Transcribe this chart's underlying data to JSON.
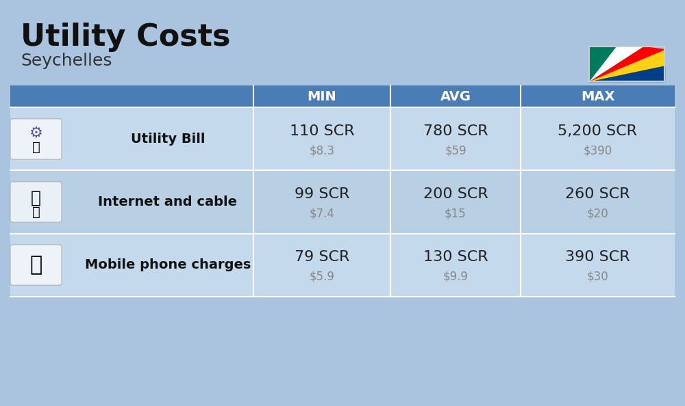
{
  "title": "Utility Costs",
  "subtitle": "Seychelles",
  "background_color": "#aac4e0",
  "header_color": "#4a7db5",
  "header_text_color": "#ffffff",
  "row_color_1": "#c5d9ec",
  "row_color_2": "#b8cfe4",
  "col_headers": [
    "MIN",
    "AVG",
    "MAX"
  ],
  "rows": [
    {
      "label": "Utility Bill",
      "min_scr": "110 SCR",
      "min_usd": "$8.3",
      "avg_scr": "780 SCR",
      "avg_usd": "$59",
      "max_scr": "5,200 SCR",
      "max_usd": "$390",
      "icon": "utility"
    },
    {
      "label": "Internet and cable",
      "min_scr": "99 SCR",
      "min_usd": "$7.4",
      "avg_scr": "200 SCR",
      "avg_usd": "$15",
      "max_scr": "260 SCR",
      "max_usd": "$20",
      "icon": "internet"
    },
    {
      "label": "Mobile phone charges",
      "min_scr": "79 SCR",
      "min_usd": "$5.9",
      "avg_scr": "130 SCR",
      "avg_usd": "$9.9",
      "max_scr": "390 SCR",
      "max_usd": "$30",
      "icon": "mobile"
    }
  ],
  "scr_fontsize": 16,
  "usd_fontsize": 12,
  "label_fontsize": 14,
  "header_fontsize": 14,
  "title_fontsize": 32,
  "subtitle_fontsize": 18,
  "scr_color": "#222222",
  "usd_color": "#888888",
  "label_color": "#111111"
}
